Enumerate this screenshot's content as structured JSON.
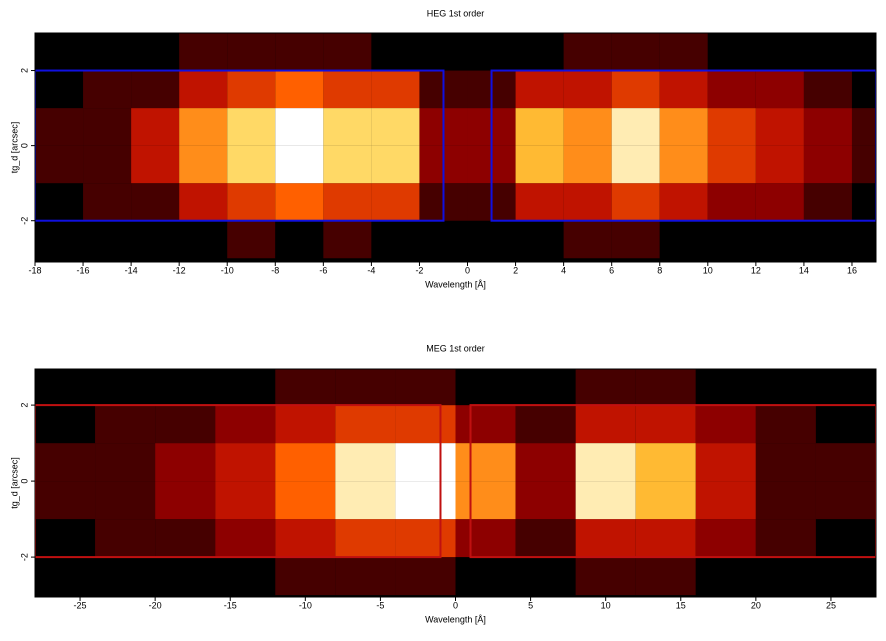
{
  "chart_data": [
    {
      "type": "heatmap",
      "title": "HEG 1st order",
      "x_label": "Wavelength [Å]",
      "y_label": "tg_d [arcsec]",
      "xlim": [
        -18,
        17
      ],
      "ylim": [
        -3.1,
        3.0
      ],
      "xticks": [
        -18,
        -16,
        -14,
        -12,
        -10,
        -8,
        -6,
        -4,
        -2,
        0,
        2,
        4,
        6,
        8,
        10,
        12,
        14,
        16
      ],
      "yticks": [
        -2,
        0,
        2
      ],
      "xbins": [
        -18,
        -16,
        -14,
        -12,
        -10,
        -8,
        -6,
        -4,
        -2,
        0,
        2,
        4,
        6,
        8,
        10,
        12,
        14,
        16,
        17
      ],
      "ybins": [
        -3,
        -2,
        -1,
        0,
        1,
        2,
        3
      ],
      "z": [
        [
          0,
          0,
          0,
          0,
          1,
          0,
          1,
          0,
          0,
          0,
          0,
          1,
          1,
          0,
          0,
          0,
          0,
          0
        ],
        [
          0,
          1,
          1,
          3,
          4,
          5,
          4,
          4,
          1,
          1,
          3,
          3,
          4,
          3,
          2,
          2,
          1,
          0
        ],
        [
          1,
          1,
          3,
          6,
          8,
          10,
          8,
          8,
          2,
          2,
          7,
          6,
          9,
          6,
          4,
          3,
          2,
          1
        ],
        [
          1,
          1,
          3,
          6,
          8,
          10,
          8,
          8,
          2,
          2,
          7,
          6,
          9,
          6,
          4,
          3,
          2,
          1
        ],
        [
          0,
          1,
          1,
          3,
          4,
          5,
          4,
          4,
          1,
          1,
          3,
          3,
          4,
          3,
          2,
          2,
          1,
          0
        ],
        [
          0,
          0,
          0,
          1,
          1,
          1,
          1,
          0,
          0,
          0,
          0,
          1,
          1,
          1,
          0,
          0,
          0,
          0
        ]
      ],
      "zlim": [
        0,
        10
      ],
      "colors": [
        "#000000",
        "#b00000",
        "#ff6000",
        "#ffd040",
        "#ffffff"
      ],
      "regions": [
        {
          "x": [
            -18,
            -1
          ],
          "y": [
            -2,
            2
          ]
        },
        {
          "x": [
            1,
            17
          ],
          "y": [
            -2,
            2
          ]
        }
      ],
      "region_color": "#1010e0"
    },
    {
      "type": "heatmap",
      "title": "MEG 1st order",
      "x_label": "Wavelength [Å]",
      "y_label": "tg_d [arcsec]",
      "xlim": [
        -28,
        28
      ],
      "ylim": [
        -3.05,
        2.95
      ],
      "xticks": [
        -25,
        -20,
        -15,
        -10,
        -5,
        0,
        5,
        10,
        15,
        20,
        25
      ],
      "yticks": [
        -2,
        0,
        2
      ],
      "xbins": [
        -28,
        -24,
        -20,
        -16,
        -12,
        -8,
        -4,
        0,
        4,
        8,
        12,
        16,
        20,
        24,
        28
      ],
      "ybins": [
        -3,
        -2,
        -1,
        0,
        1,
        2,
        3
      ],
      "z": [
        [
          0,
          0,
          0,
          0,
          1,
          1,
          1,
          0,
          0,
          1,
          1,
          0,
          0,
          0
        ],
        [
          0,
          1,
          1,
          2,
          3,
          4,
          4,
          2,
          1,
          3,
          3,
          2,
          1,
          0
        ],
        [
          1,
          1,
          2,
          3,
          5,
          9,
          10,
          6,
          2,
          9,
          7,
          3,
          1,
          1
        ],
        [
          1,
          1,
          2,
          3,
          5,
          9,
          10,
          6,
          2,
          9,
          7,
          3,
          1,
          1
        ],
        [
          0,
          1,
          1,
          2,
          3,
          4,
          4,
          2,
          1,
          3,
          3,
          2,
          1,
          0
        ],
        [
          0,
          0,
          0,
          0,
          1,
          1,
          1,
          0,
          0,
          1,
          1,
          0,
          0,
          0
        ]
      ],
      "zlim": [
        0,
        10
      ],
      "colors": [
        "#000000",
        "#b00000",
        "#ff6000",
        "#ffd040",
        "#ffffff"
      ],
      "regions": [
        {
          "x": [
            -28,
            -1
          ],
          "y": [
            -2,
            2
          ]
        },
        {
          "x": [
            1,
            28
          ],
          "y": [
            -2,
            2
          ]
        }
      ],
      "region_color": "#c01010"
    }
  ]
}
